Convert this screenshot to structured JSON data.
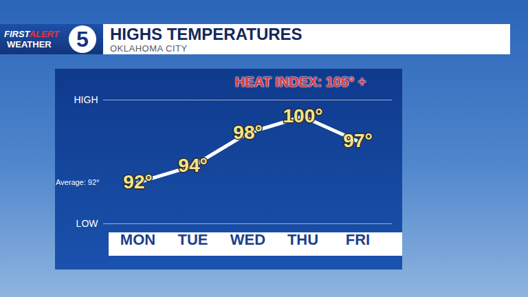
{
  "chart_data": {
    "type": "line",
    "logo": {
      "first": "FIRST",
      "alert": "ALERT",
      "weather": "WEATHER",
      "number": "5"
    },
    "title": "HIGHS TEMPERATURES",
    "subtitle": "OKLAHOMA CITY",
    "categories": [
      "MON",
      "TUE",
      "WED",
      "THU",
      "FRI"
    ],
    "values": [
      92,
      94,
      98,
      100,
      97
    ],
    "value_labels": [
      "92°",
      "94°",
      "98°",
      "100°",
      "97°"
    ],
    "data_labels": true,
    "color": "#ffffff",
    "ylim": [
      87,
      102
    ],
    "yticks": [
      {
        "value": 87,
        "label": "LOW"
      },
      {
        "value": 102,
        "label": "HIGH"
      }
    ],
    "grid": true,
    "average": {
      "label": "Average: 92°",
      "value": 92
    },
    "annotations": [
      {
        "text": "HEAT INDEX: 105° +"
      }
    ]
  }
}
